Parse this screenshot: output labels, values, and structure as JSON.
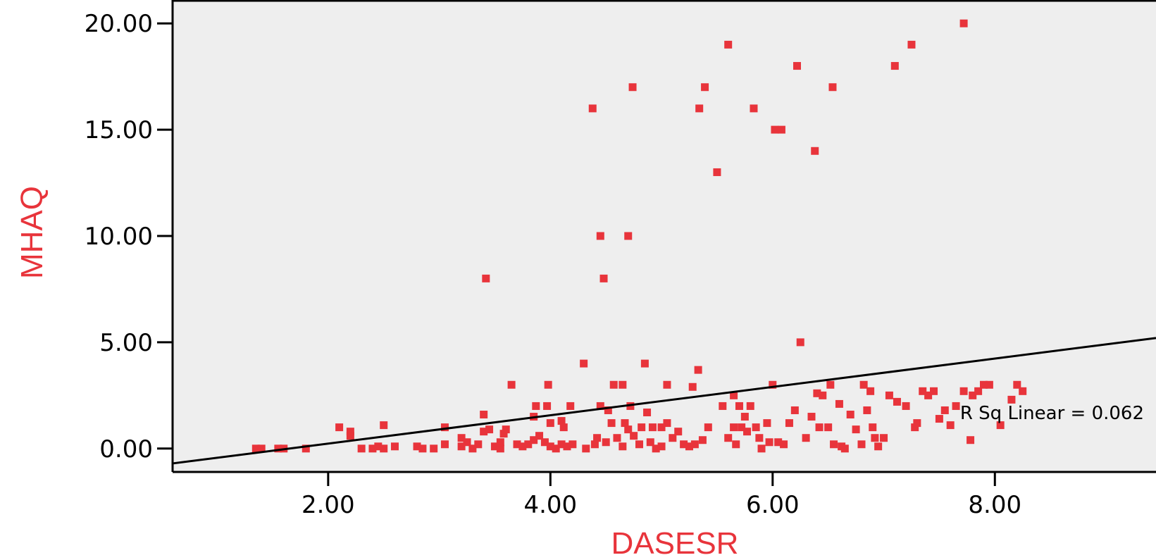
{
  "chart_data": {
    "type": "scatter",
    "xlabel": "DASESR",
    "ylabel": "MHAQ",
    "xlim": [
      0.6,
      9.45
    ],
    "ylim": [
      -1.1,
      21.1
    ],
    "x_ticks": [
      2,
      4,
      6,
      8
    ],
    "x_tick_labels": [
      "2.00",
      "4.00",
      "6.00",
      "8.00"
    ],
    "y_ticks": [
      0,
      5,
      10,
      15,
      20
    ],
    "y_tick_labels": [
      "0.00",
      "5.00",
      "10.00",
      "15.00",
      "20.00"
    ],
    "grid": false,
    "colors": {
      "points": "#e8343b",
      "axis_title": "#e8343b",
      "plot_bg": "#eeeeee",
      "fit_line": "#000000"
    },
    "fit_line": {
      "type": "linear",
      "points": [
        [
          0.6,
          -0.7
        ],
        [
          9.45,
          5.2
        ]
      ],
      "label": "R Sq Linear = 0.062"
    },
    "points": [
      [
        1.35,
        0
      ],
      [
        1.4,
        0
      ],
      [
        1.55,
        0
      ],
      [
        1.6,
        0
      ],
      [
        1.8,
        0
      ],
      [
        2.1,
        1
      ],
      [
        2.2,
        0.8
      ],
      [
        2.2,
        0.6
      ],
      [
        2.3,
        0
      ],
      [
        2.4,
        0
      ],
      [
        2.45,
        0.1
      ],
      [
        2.5,
        0
      ],
      [
        2.5,
        1.1
      ],
      [
        2.6,
        0.1
      ],
      [
        2.8,
        0.1
      ],
      [
        2.85,
        0
      ],
      [
        2.95,
        0
      ],
      [
        3.05,
        1
      ],
      [
        3.05,
        0.2
      ],
      [
        3.2,
        0.1
      ],
      [
        3.2,
        0.5
      ],
      [
        3.25,
        0.3
      ],
      [
        3.3,
        0
      ],
      [
        3.35,
        0.2
      ],
      [
        3.4,
        1.6
      ],
      [
        3.4,
        0.8
      ],
      [
        3.42,
        8
      ],
      [
        3.45,
        0.9
      ],
      [
        3.5,
        0.1
      ],
      [
        3.55,
        0
      ],
      [
        3.55,
        0.3
      ],
      [
        3.58,
        0.7
      ],
      [
        3.6,
        0.9
      ],
      [
        3.65,
        3
      ],
      [
        3.7,
        0.2
      ],
      [
        3.75,
        0.1
      ],
      [
        3.8,
        0.2
      ],
      [
        3.85,
        0.4
      ],
      [
        3.85,
        1.5
      ],
      [
        3.87,
        2
      ],
      [
        3.9,
        0.6
      ],
      [
        3.95,
        0.3
      ],
      [
        3.97,
        2
      ],
      [
        3.98,
        3
      ],
      [
        4.0,
        1.2
      ],
      [
        4.0,
        0.1
      ],
      [
        4.05,
        0
      ],
      [
        4.1,
        0.2
      ],
      [
        4.1,
        1.3
      ],
      [
        4.12,
        1
      ],
      [
        4.15,
        0.1
      ],
      [
        4.18,
        2
      ],
      [
        4.2,
        0.2
      ],
      [
        4.3,
        4
      ],
      [
        4.32,
        0
      ],
      [
        4.38,
        16
      ],
      [
        4.4,
        0.2
      ],
      [
        4.42,
        0.5
      ],
      [
        4.45,
        2
      ],
      [
        4.45,
        10
      ],
      [
        4.48,
        8
      ],
      [
        4.5,
        0.3
      ],
      [
        4.52,
        1.8
      ],
      [
        4.55,
        1.2
      ],
      [
        4.57,
        3
      ],
      [
        4.6,
        0.5
      ],
      [
        4.65,
        3
      ],
      [
        4.65,
        0.1
      ],
      [
        4.67,
        1.2
      ],
      [
        4.7,
        10
      ],
      [
        4.7,
        0.9
      ],
      [
        4.72,
        2
      ],
      [
        4.74,
        17
      ],
      [
        4.75,
        0.6
      ],
      [
        4.8,
        0.2
      ],
      [
        4.82,
        1
      ],
      [
        4.85,
        4
      ],
      [
        4.87,
        1.7
      ],
      [
        4.9,
        0.3
      ],
      [
        4.92,
        1
      ],
      [
        4.95,
        0
      ],
      [
        5.0,
        1
      ],
      [
        5.0,
        0.1
      ],
      [
        5.05,
        3
      ],
      [
        5.05,
        1.2
      ],
      [
        5.1,
        0.5
      ],
      [
        5.15,
        0.8
      ],
      [
        5.2,
        0.2
      ],
      [
        5.25,
        0.1
      ],
      [
        5.28,
        2.9
      ],
      [
        5.3,
        0.2
      ],
      [
        5.33,
        3.7
      ],
      [
        5.34,
        16
      ],
      [
        5.37,
        0.4
      ],
      [
        5.39,
        17
      ],
      [
        5.42,
        1
      ],
      [
        5.5,
        13
      ],
      [
        5.55,
        2
      ],
      [
        5.6,
        19
      ],
      [
        5.6,
        0.5
      ],
      [
        5.65,
        2.5
      ],
      [
        5.65,
        1
      ],
      [
        5.67,
        0.2
      ],
      [
        5.7,
        2
      ],
      [
        5.72,
        1
      ],
      [
        5.75,
        1.5
      ],
      [
        5.77,
        0.8
      ],
      [
        5.8,
        2
      ],
      [
        5.83,
        16
      ],
      [
        5.85,
        1
      ],
      [
        5.88,
        0.5
      ],
      [
        5.9,
        0
      ],
      [
        5.95,
        1.2
      ],
      [
        5.97,
        0.3
      ],
      [
        6.0,
        3
      ],
      [
        6.02,
        15
      ],
      [
        6.05,
        0.3
      ],
      [
        6.08,
        15
      ],
      [
        6.1,
        0.2
      ],
      [
        6.15,
        1.2
      ],
      [
        6.2,
        1.8
      ],
      [
        6.22,
        18
      ],
      [
        6.25,
        5
      ],
      [
        6.3,
        0.5
      ],
      [
        6.35,
        1.5
      ],
      [
        6.38,
        14
      ],
      [
        6.4,
        2.6
      ],
      [
        6.42,
        1
      ],
      [
        6.45,
        2.5
      ],
      [
        6.5,
        1
      ],
      [
        6.52,
        3
      ],
      [
        6.54,
        17
      ],
      [
        6.55,
        0.2
      ],
      [
        6.6,
        2.1
      ],
      [
        6.62,
        0.1
      ],
      [
        6.65,
        0
      ],
      [
        6.7,
        1.6
      ],
      [
        6.75,
        0.9
      ],
      [
        6.8,
        0.2
      ],
      [
        6.82,
        3
      ],
      [
        6.85,
        1.8
      ],
      [
        6.88,
        2.7
      ],
      [
        6.9,
        1
      ],
      [
        6.92,
        0.5
      ],
      [
        6.95,
        0.1
      ],
      [
        7.0,
        0.5
      ],
      [
        7.05,
        2.5
      ],
      [
        7.1,
        18
      ],
      [
        7.12,
        2.2
      ],
      [
        7.2,
        2
      ],
      [
        7.25,
        19
      ],
      [
        7.28,
        1
      ],
      [
        7.3,
        1.2
      ],
      [
        7.35,
        2.7
      ],
      [
        7.4,
        2.5
      ],
      [
        7.45,
        2.7
      ],
      [
        7.5,
        1.4
      ],
      [
        7.55,
        1.8
      ],
      [
        7.6,
        1.1
      ],
      [
        7.65,
        2
      ],
      [
        7.72,
        20
      ],
      [
        7.72,
        2.7
      ],
      [
        7.78,
        0.4
      ],
      [
        7.8,
        2.5
      ],
      [
        7.85,
        2.7
      ],
      [
        7.9,
        3
      ],
      [
        7.95,
        3
      ],
      [
        8.05,
        1.1
      ],
      [
        8.15,
        2.3
      ],
      [
        8.2,
        3
      ],
      [
        8.25,
        2.7
      ]
    ]
  }
}
